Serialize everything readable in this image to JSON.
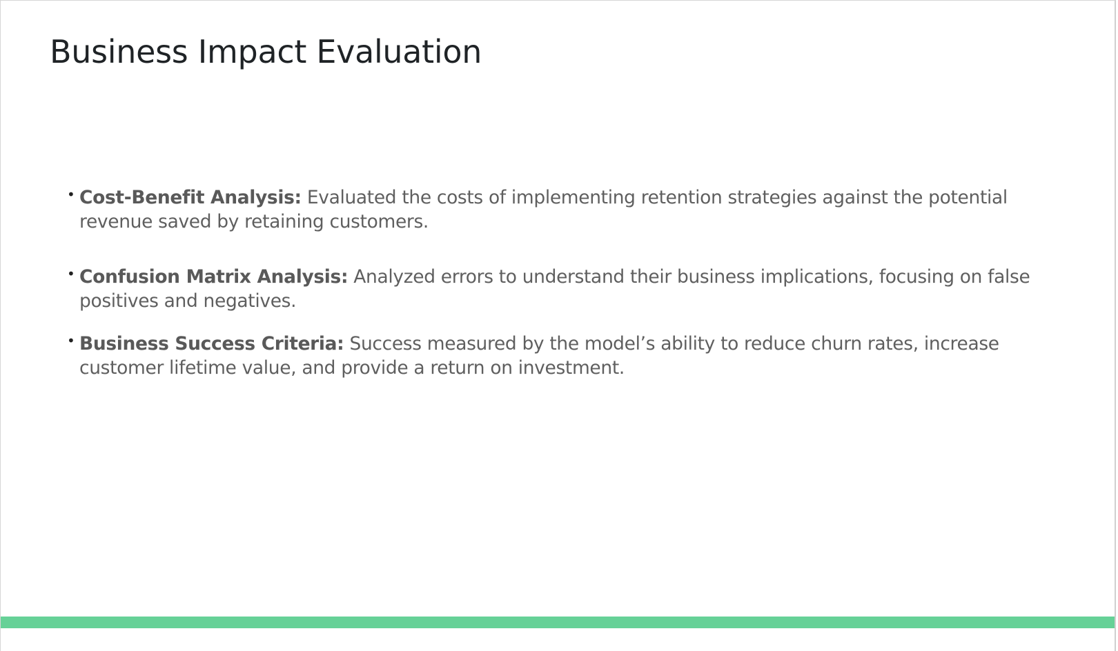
{
  "slide": {
    "title": "Business Impact Evaluation",
    "accent_color": "#66d197",
    "bullets": [
      {
        "term": "Cost-Benefit Analysis:",
        "text": " Evaluated the costs of implementing retention strategies against the potential revenue saved by retaining customers."
      },
      {
        "term": "Confusion Matrix Analysis:",
        "text": " Analyzed errors to understand their business implications, focusing on false positives and negatives."
      },
      {
        "term": "Business Success Criteria:",
        "text": " Success measured by the model’s ability to reduce churn rates, increase customer lifetime value, and provide a return on investment."
      }
    ],
    "bullet_glyph": "•"
  }
}
